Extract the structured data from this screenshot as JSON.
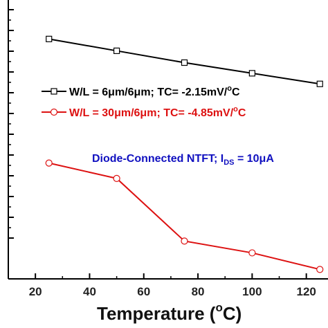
{
  "chart_data": {
    "type": "line",
    "xlabel": {
      "text": "Temperature (",
      "sup": "o",
      "after": "C)"
    },
    "ylabel": "",
    "xlim": [
      10,
      128
    ],
    "x_ticks": [
      "20",
      "40",
      "60",
      "80",
      "100",
      "120"
    ],
    "y_tick_marks": 12,
    "x": [
      25,
      50,
      75,
      100,
      125
    ],
    "series": [
      {
        "name": "W/L = 6μm/6μm; TC= -2.15mV/°C",
        "color": "#000000",
        "marker": "square",
        "values": [
          9.55,
          9.05,
          8.55,
          8.1,
          7.65
        ]
      },
      {
        "name": "W/L = 30μm/6μm; TC= -4.85mV/°C",
        "color": "#dd1111",
        "marker": "circle",
        "values": [
          4.3,
          3.65,
          1.0,
          0.5,
          -0.2
        ]
      }
    ],
    "ylim": [
      -0.6,
      11.2
    ],
    "legend": [
      {
        "pre": "W/L = 6μm/6μm; TC= -2.15mV/",
        "sup": "o",
        "post": "C"
      },
      {
        "pre": "W/L = 30μm/6μm; TC= -4.85mV/",
        "sup": "o",
        "post": "C"
      }
    ],
    "annotation": {
      "pre": "Diode-Connected NTFT; I",
      "sub": "DS",
      "post": " = 10μA",
      "color": "#1010c0"
    },
    "legend_position": "center-right"
  }
}
